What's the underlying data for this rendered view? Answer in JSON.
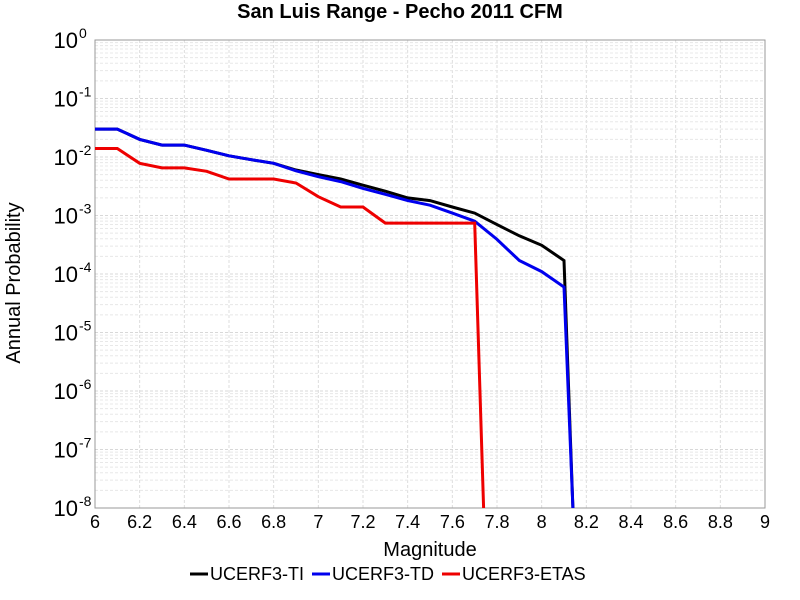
{
  "chart_data": {
    "type": "line",
    "title": "San Luis Range - Pecho 2011 CFM",
    "xlabel": "Magnitude",
    "ylabel": "Annual Probability",
    "xlim": [
      6,
      9
    ],
    "ylim": [
      1e-08,
      1
    ],
    "yscale": "log",
    "grid": true,
    "legend_position": "bottom",
    "x_ticks": [
      "6",
      "6.2",
      "6.4",
      "6.6",
      "6.8",
      "7",
      "7.2",
      "7.4",
      "7.6",
      "7.8",
      "8",
      "8.2",
      "8.4",
      "8.6",
      "8.8",
      "9"
    ],
    "y_ticks": [
      {
        "base": "10",
        "exp": "0",
        "value": 1
      },
      {
        "base": "10",
        "exp": "-1",
        "value": 0.1
      },
      {
        "base": "10",
        "exp": "-2",
        "value": 0.01
      },
      {
        "base": "10",
        "exp": "-3",
        "value": 0.001
      },
      {
        "base": "10",
        "exp": "-4",
        "value": 0.0001
      },
      {
        "base": "10",
        "exp": "-5",
        "value": 1e-05
      },
      {
        "base": "10",
        "exp": "-6",
        "value": 1e-06
      },
      {
        "base": "10",
        "exp": "-7",
        "value": 1e-07
      },
      {
        "base": "10",
        "exp": "-8",
        "value": 1e-08
      }
    ],
    "series": [
      {
        "name": "UCERF3-TI",
        "color": "#000000",
        "x": [
          6.0,
          6.1,
          6.2,
          6.3,
          6.4,
          6.5,
          6.6,
          6.7,
          6.8,
          6.9,
          7.0,
          7.1,
          7.2,
          7.3,
          7.4,
          7.5,
          7.6,
          7.7,
          7.8,
          7.9,
          8.0,
          8.1,
          8.14
        ],
        "y": [
          0.03,
          0.03,
          0.02,
          0.016,
          0.016,
          0.013,
          0.0105,
          0.009,
          0.0078,
          0.006,
          0.005,
          0.0042,
          0.0033,
          0.0026,
          0.002,
          0.0018,
          0.0014,
          0.0011,
          0.0007,
          0.00045,
          0.00031,
          0.00017,
          1e-08
        ]
      },
      {
        "name": "UCERF3-TD",
        "color": "#0000ee",
        "x": [
          6.0,
          6.1,
          6.2,
          6.3,
          6.4,
          6.5,
          6.6,
          6.7,
          6.8,
          6.9,
          7.0,
          7.1,
          7.2,
          7.3,
          7.4,
          7.5,
          7.6,
          7.7,
          7.8,
          7.9,
          8.0,
          8.1,
          8.14
        ],
        "y": [
          0.03,
          0.03,
          0.02,
          0.016,
          0.016,
          0.013,
          0.0105,
          0.009,
          0.0078,
          0.0058,
          0.0046,
          0.0038,
          0.0029,
          0.0023,
          0.0018,
          0.0015,
          0.0011,
          0.0008,
          0.00039,
          0.00017,
          0.00011,
          6e-05,
          1e-08
        ]
      },
      {
        "name": "UCERF3-ETAS",
        "color": "#ee0000",
        "x": [
          6.0,
          6.1,
          6.2,
          6.3,
          6.4,
          6.5,
          6.6,
          6.7,
          6.8,
          6.9,
          7.0,
          7.1,
          7.2,
          7.3,
          7.4,
          7.5,
          7.6,
          7.7,
          7.74
        ],
        "y": [
          0.014,
          0.014,
          0.0078,
          0.0065,
          0.0065,
          0.0057,
          0.0042,
          0.0042,
          0.0042,
          0.0036,
          0.0021,
          0.0014,
          0.0014,
          0.00074,
          0.00074,
          0.00074,
          0.00074,
          0.00074,
          1e-08
        ]
      }
    ]
  }
}
